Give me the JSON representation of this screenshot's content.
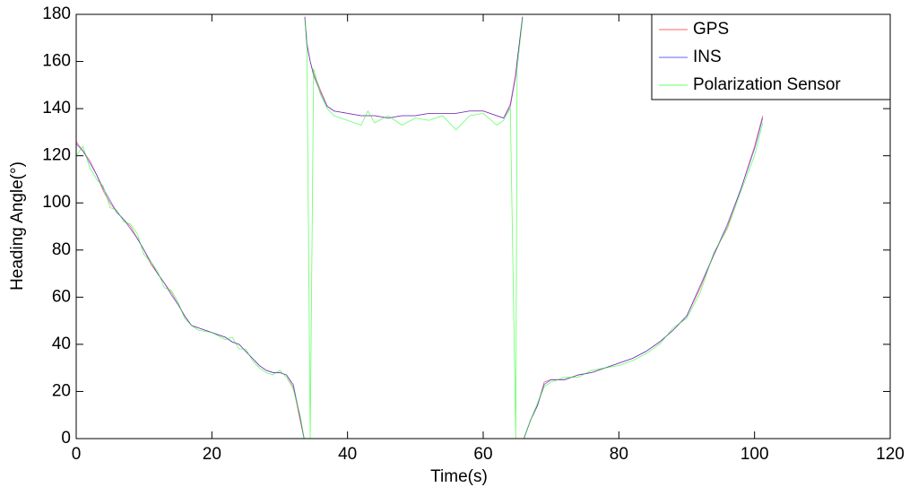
{
  "chart_data": {
    "type": "line",
    "x_label": "Time(s)",
    "y_label": "Heading Angle(°)",
    "x": [
      0,
      1,
      2,
      3,
      4,
      5,
      6,
      7,
      8,
      9,
      10,
      11,
      12,
      13,
      14,
      15,
      16,
      17,
      18,
      20,
      22,
      23,
      24,
      25,
      26,
      27,
      28,
      29,
      30,
      31,
      32,
      33,
      33.6,
      33.65,
      33.7,
      34,
      34.5,
      35,
      36,
      37,
      38,
      40,
      42,
      43,
      44,
      46,
      48,
      50,
      52,
      54,
      56,
      58,
      60,
      62,
      63,
      64,
      64.8,
      65,
      65.8,
      65.85,
      66,
      67,
      68,
      69,
      70,
      72,
      74,
      76,
      78,
      80,
      82,
      84,
      86,
      88,
      90,
      92,
      94,
      96,
      98,
      100,
      101.2
    ],
    "series": [
      {
        "name": "GPS",
        "color": "#ff0000",
        "values": [
          126,
          122,
          118,
          112,
          105,
          100,
          96,
          93,
          90,
          85,
          80,
          74,
          70,
          66,
          62,
          57,
          52,
          48,
          47,
          45,
          43,
          41,
          40,
          37,
          34,
          31,
          29,
          28,
          28,
          27,
          22,
          8,
          0,
          null,
          179,
          168,
          160,
          155,
          148,
          141,
          139,
          138,
          137,
          137,
          137,
          136,
          137,
          137,
          138,
          138,
          138,
          139,
          139,
          137,
          136,
          142,
          155,
          160,
          179,
          null,
          0,
          8,
          14,
          24,
          25,
          25,
          27,
          28,
          30,
          32,
          34,
          37,
          41,
          46,
          52,
          64,
          78,
          90,
          106,
          124,
          137
        ]
      },
      {
        "name": "INS",
        "color": "#0000ff",
        "values": [
          125,
          122,
          117,
          112,
          106,
          101,
          96,
          93,
          89,
          85,
          80,
          75,
          70,
          66,
          61,
          57,
          52,
          48,
          47,
          45,
          43,
          41,
          40,
          37,
          34,
          31,
          29,
          28,
          28,
          27,
          23,
          9,
          0,
          null,
          179,
          167,
          160,
          154,
          147,
          141,
          139,
          138,
          137,
          137,
          137,
          136,
          137,
          137,
          138,
          138,
          138,
          139,
          139,
          137,
          136,
          141,
          154,
          160,
          179,
          null,
          0,
          8,
          14,
          23,
          25,
          25,
          27,
          28,
          30,
          32,
          34,
          37,
          41,
          46,
          52,
          65,
          78,
          91,
          106,
          123,
          136
        ]
      },
      {
        "name": "Polarization Sensor",
        "color": "#00ff00",
        "values": [
          120,
          124,
          115,
          110,
          107,
          98,
          97,
          92,
          91,
          87,
          78,
          75,
          71,
          64,
          63,
          58,
          51,
          48,
          46,
          45,
          42,
          43,
          38,
          38,
          33,
          30,
          28,
          27,
          29,
          26,
          21,
          10,
          0,
          null,
          178,
          170,
          0,
          157,
          146,
          140,
          137,
          135,
          133,
          139,
          134,
          137,
          133,
          136,
          135,
          137,
          131,
          137,
          138,
          133,
          135,
          140,
          0,
          157,
          178,
          null,
          0,
          8,
          15,
          22,
          24,
          26,
          26,
          29,
          30,
          31,
          33,
          36,
          40,
          47,
          51,
          62,
          79,
          89,
          105,
          120,
          134
        ]
      }
    ],
    "xlim": [
      0,
      120
    ],
    "xticks": [
      0,
      20,
      40,
      60,
      80,
      100,
      120
    ],
    "ylim": [
      0,
      180
    ],
    "yticks": [
      0,
      20,
      40,
      60,
      80,
      100,
      120,
      140,
      160,
      180
    ],
    "grid": false,
    "legend": "upper right"
  }
}
